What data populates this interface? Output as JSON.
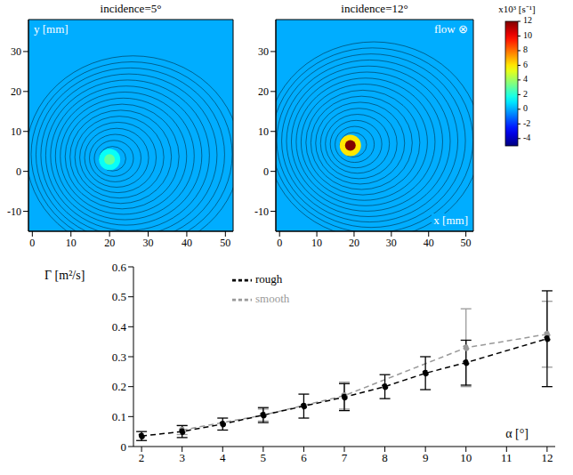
{
  "chart_data": [
    {
      "type": "heatmap",
      "title": "incidence=5°",
      "y_label": "y [mm]",
      "xlim": [
        -1,
        52
      ],
      "ylim": [
        -15,
        38
      ],
      "xticks": [
        0,
        10,
        20,
        30,
        40,
        50
      ],
      "yticks": [
        -10,
        0,
        10,
        20,
        30
      ],
      "background_vorticity": 0,
      "vortex_core": {
        "x": 20,
        "y": 3,
        "vorticity": 3
      }
    },
    {
      "type": "heatmap",
      "title": "incidence=12°",
      "x_label": "x [mm]",
      "annotation": "flow ⊗",
      "xlim": [
        -1,
        52
      ],
      "ylim": [
        -15,
        38
      ],
      "xticks": [
        0,
        10,
        20,
        30,
        40,
        50
      ],
      "yticks": [
        -10,
        0,
        10,
        20,
        30
      ],
      "background_vorticity": 0,
      "vortex_core": {
        "x": 19,
        "y": 6.5,
        "vorticity": 12
      },
      "colorbar": {
        "label": "x10³ [s⁻¹]",
        "range": [
          -5,
          12
        ],
        "ticks": [
          12,
          10,
          8,
          6,
          4,
          2,
          0,
          -2,
          -4
        ]
      }
    },
    {
      "type": "line",
      "x_label": "α [°]",
      "y_label": "Γ [m²/s]",
      "xlim": [
        1.8,
        12.2
      ],
      "ylim": [
        0,
        0.6
      ],
      "xticks": [
        2,
        3,
        4,
        5,
        6,
        7,
        8,
        9,
        10,
        11,
        12
      ],
      "yticks": [
        0,
        0.1,
        0.2,
        0.3,
        0.4,
        0.5,
        0.6
      ],
      "grid": false,
      "legend": "top",
      "series": [
        {
          "name": "smooth",
          "color": "#999999",
          "marker": "circle",
          "line_style": "dashed",
          "x": [
            3,
            5,
            7,
            10,
            12
          ],
          "values": [
            0.055,
            0.105,
            0.17,
            0.33,
            0.375
          ],
          "errors": [
            0.015,
            0.02,
            0.045,
            0.13,
            0.11
          ]
        },
        {
          "name": "rough",
          "color": "#000000",
          "marker": "circle",
          "line_style": "dashed",
          "x": [
            2,
            3,
            4,
            5,
            6,
            7,
            8,
            9,
            10,
            12
          ],
          "values": [
            0.035,
            0.05,
            0.075,
            0.105,
            0.135,
            0.165,
            0.2,
            0.245,
            0.28,
            0.36
          ],
          "errors": [
            0.015,
            0.02,
            0.02,
            0.025,
            0.04,
            0.045,
            0.04,
            0.055,
            0.075,
            0.16
          ]
        }
      ]
    }
  ]
}
